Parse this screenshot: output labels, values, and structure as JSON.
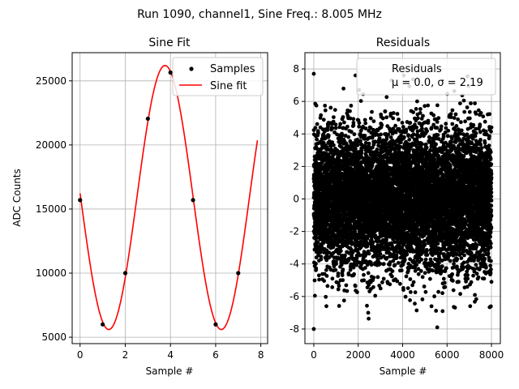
{
  "suptitle": "Run 1090, channel1, Sine Freq.: 8.005 MHz",
  "chart_data": [
    {
      "type": "line",
      "title": "Sine Fit",
      "xlabel": "Sample #",
      "ylabel": "ADC Counts",
      "xlim": [
        -0.35,
        8.3
      ],
      "ylim": [
        4500,
        27200
      ],
      "grid": true,
      "xticks": [
        0,
        2,
        4,
        6,
        8
      ],
      "yticks": [
        5000,
        10000,
        15000,
        20000,
        25000
      ],
      "legend": {
        "placement": "upper-right",
        "entries": [
          "Samples",
          "Sine fit"
        ]
      },
      "series": [
        {
          "name": "Samples",
          "style": "markers",
          "color": "#000000",
          "x": [
            0,
            1,
            2,
            3,
            4,
            5,
            6,
            7
          ],
          "y": [
            15700,
            6000,
            10000,
            22050,
            25650,
            15700,
            6000,
            10000
          ]
        },
        {
          "name": "Sine fit",
          "style": "line",
          "color": "#ff0000",
          "fit": {
            "amplitude": 10300,
            "offset": 15900,
            "period": 4.98,
            "peak_at": 3.76,
            "x_start": 0,
            "x_end": 7.85
          }
        }
      ]
    },
    {
      "type": "scatter",
      "title": "Residuals",
      "xlabel": "Sample #",
      "xlim": [
        -400,
        8400
      ],
      "ylim": [
        -8.9,
        9.0
      ],
      "grid": true,
      "xticks": [
        0,
        2000,
        4000,
        6000,
        8000
      ],
      "yticks": [
        -8,
        -6,
        -4,
        -2,
        0,
        2,
        4,
        6,
        8
      ],
      "legend": {
        "placement": "upper-right",
        "entries": [
          "Residuals",
          "μ = 0.0, σ = 2.19"
        ]
      },
      "series": [
        {
          "name": "Residuals",
          "color": "#000000",
          "n_points": 8000,
          "mean": 0.0,
          "sigma": 2.19,
          "highlights": [
            {
              "x": 0,
              "y": 7.7
            },
            {
              "x": 0,
              "y": -8.0
            },
            {
              "x": 2450,
              "y": -7.0
            },
            {
              "x": 3500,
              "y": 7.3
            },
            {
              "x": 5300,
              "y": -6.6
            },
            {
              "x": 5800,
              "y": -6.9
            },
            {
              "x": 8000,
              "y": 4.4
            },
            {
              "x": 8000,
              "y": -5.1
            }
          ]
        }
      ]
    }
  ]
}
